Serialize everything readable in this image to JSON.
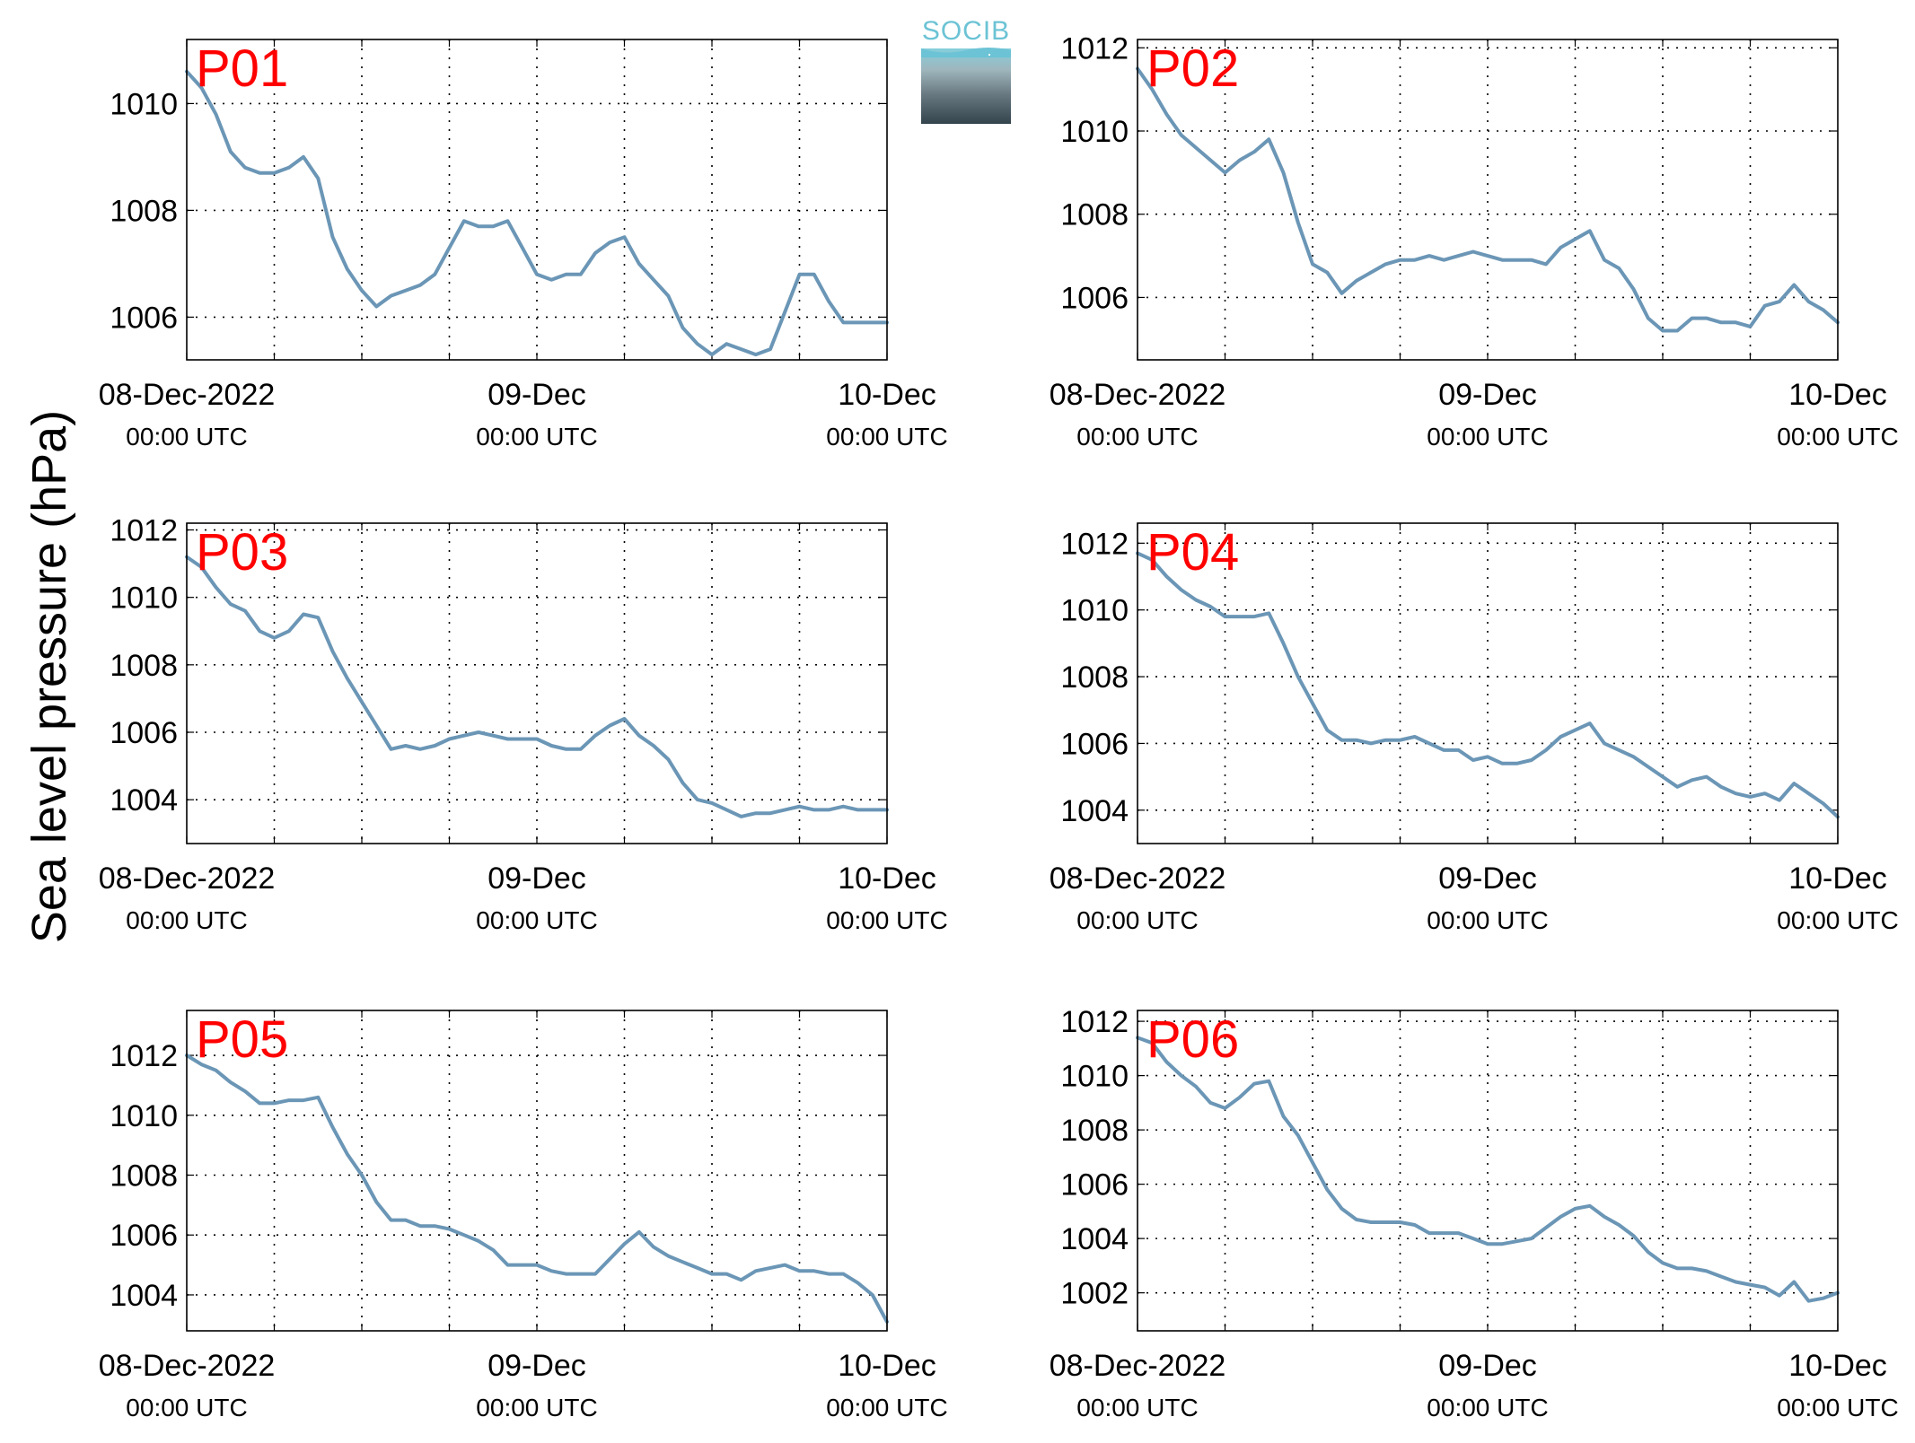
{
  "figure": {
    "ylabel": "Sea level pressure (hPa)",
    "logo_text": "SOCIB",
    "line_color": "#6b96b6",
    "label_color": "#ff0000"
  },
  "chart_data": [
    {
      "type": "line",
      "title": "P01",
      "ylim": [
        1005.2,
        1011.2
      ],
      "yticks": [
        1006,
        1008,
        1010
      ],
      "x_range_hours": [
        0,
        48
      ],
      "grid": true,
      "xtick_labels": [
        {
          "top": "08-Dec-2022",
          "bottom": "00:00 UTC"
        },
        {
          "top": "09-Dec",
          "bottom": "00:00 UTC"
        },
        {
          "top": "10-Dec",
          "bottom": "00:00 UTC"
        }
      ],
      "series": [
        {
          "x": [
            0,
            1,
            2,
            3,
            4,
            5,
            6,
            7,
            8,
            9,
            10,
            11,
            12,
            13,
            14,
            15,
            16,
            17,
            18,
            19,
            20,
            21,
            22,
            23,
            24,
            25,
            26,
            27,
            28,
            29,
            30,
            31,
            32,
            33,
            34,
            35,
            36,
            37,
            38,
            39,
            40,
            41,
            42,
            43,
            44,
            45,
            46,
            47,
            48
          ],
          "values": [
            1010.6,
            1010.3,
            1009.8,
            1009.1,
            1008.8,
            1008.7,
            1008.7,
            1008.8,
            1009.0,
            1008.6,
            1007.5,
            1006.9,
            1006.5,
            1006.2,
            1006.4,
            1006.5,
            1006.6,
            1006.8,
            1007.3,
            1007.8,
            1007.7,
            1007.7,
            1007.8,
            1007.3,
            1006.8,
            1006.7,
            1006.8,
            1006.8,
            1007.2,
            1007.4,
            1007.5,
            1007.0,
            1006.7,
            1006.4,
            1005.8,
            1005.5,
            1005.3,
            1005.5,
            1005.4,
            1005.3,
            1005.4,
            1006.1,
            1006.8,
            1006.8,
            1006.3,
            1005.9,
            1005.9,
            1005.9,
            1005.9
          ]
        }
      ]
    },
    {
      "type": "line",
      "title": "P02",
      "ylim": [
        1004.5,
        1012.2
      ],
      "yticks": [
        1006,
        1008,
        1010,
        1012
      ],
      "x_range_hours": [
        0,
        48
      ],
      "grid": true,
      "xtick_labels": [
        {
          "top": "08-Dec-2022",
          "bottom": "00:00 UTC"
        },
        {
          "top": "09-Dec",
          "bottom": "00:00 UTC"
        },
        {
          "top": "10-Dec",
          "bottom": "00:00 UTC"
        }
      ],
      "series": [
        {
          "x": [
            0,
            1,
            2,
            3,
            4,
            5,
            6,
            7,
            8,
            9,
            10,
            11,
            12,
            13,
            14,
            15,
            16,
            17,
            18,
            19,
            20,
            21,
            22,
            23,
            24,
            25,
            26,
            27,
            28,
            29,
            30,
            31,
            32,
            33,
            34,
            35,
            36,
            37,
            38,
            39,
            40,
            41,
            42,
            43,
            44,
            45,
            46,
            47,
            48
          ],
          "values": [
            1011.5,
            1011.0,
            1010.4,
            1009.9,
            1009.6,
            1009.3,
            1009.0,
            1009.3,
            1009.5,
            1009.8,
            1009.0,
            1007.8,
            1006.8,
            1006.6,
            1006.1,
            1006.4,
            1006.6,
            1006.8,
            1006.9,
            1006.9,
            1007.0,
            1006.9,
            1007.0,
            1007.1,
            1007.0,
            1006.9,
            1006.9,
            1006.9,
            1006.8,
            1007.2,
            1007.4,
            1007.6,
            1006.9,
            1006.7,
            1006.2,
            1005.5,
            1005.2,
            1005.2,
            1005.5,
            1005.5,
            1005.4,
            1005.4,
            1005.3,
            1005.8,
            1005.9,
            1006.3,
            1005.9,
            1005.7,
            1005.4
          ]
        }
      ]
    },
    {
      "type": "line",
      "title": "P03",
      "ylim": [
        1002.7,
        1012.2
      ],
      "yticks": [
        1004,
        1006,
        1008,
        1010,
        1012
      ],
      "x_range_hours": [
        0,
        48
      ],
      "grid": true,
      "xtick_labels": [
        {
          "top": "08-Dec-2022",
          "bottom": "00:00 UTC"
        },
        {
          "top": "09-Dec",
          "bottom": "00:00 UTC"
        },
        {
          "top": "10-Dec",
          "bottom": "00:00 UTC"
        }
      ],
      "series": [
        {
          "x": [
            0,
            1,
            2,
            3,
            4,
            5,
            6,
            7,
            8,
            9,
            10,
            11,
            12,
            13,
            14,
            15,
            16,
            17,
            18,
            19,
            20,
            21,
            22,
            23,
            24,
            25,
            26,
            27,
            28,
            29,
            30,
            31,
            32,
            33,
            34,
            35,
            36,
            37,
            38,
            39,
            40,
            41,
            42,
            43,
            44,
            45,
            46,
            47,
            48
          ],
          "values": [
            1011.2,
            1010.9,
            1010.3,
            1009.8,
            1009.6,
            1009.0,
            1008.8,
            1009.0,
            1009.5,
            1009.4,
            1008.4,
            1007.6,
            1006.9,
            1006.2,
            1005.5,
            1005.6,
            1005.5,
            1005.6,
            1005.8,
            1005.9,
            1006.0,
            1005.9,
            1005.8,
            1005.8,
            1005.8,
            1005.6,
            1005.5,
            1005.5,
            1005.9,
            1006.2,
            1006.4,
            1005.9,
            1005.6,
            1005.2,
            1004.5,
            1004.0,
            1003.9,
            1003.7,
            1003.5,
            1003.6,
            1003.6,
            1003.7,
            1003.8,
            1003.7,
            1003.7,
            1003.8,
            1003.7,
            1003.7,
            1003.7
          ]
        }
      ]
    },
    {
      "type": "line",
      "title": "P04",
      "ylim": [
        1003.0,
        1012.6
      ],
      "yticks": [
        1004,
        1006,
        1008,
        1010,
        1012
      ],
      "x_range_hours": [
        0,
        48
      ],
      "grid": true,
      "xtick_labels": [
        {
          "top": "08-Dec-2022",
          "bottom": "00:00 UTC"
        },
        {
          "top": "09-Dec",
          "bottom": "00:00 UTC"
        },
        {
          "top": "10-Dec",
          "bottom": "00:00 UTC"
        }
      ],
      "series": [
        {
          "x": [
            0,
            1,
            2,
            3,
            4,
            5,
            6,
            7,
            8,
            9,
            10,
            11,
            12,
            13,
            14,
            15,
            16,
            17,
            18,
            19,
            20,
            21,
            22,
            23,
            24,
            25,
            26,
            27,
            28,
            29,
            30,
            31,
            32,
            33,
            34,
            35,
            36,
            37,
            38,
            39,
            40,
            41,
            42,
            43,
            44,
            45,
            46,
            47,
            48
          ],
          "values": [
            1011.7,
            1011.5,
            1011.0,
            1010.6,
            1010.3,
            1010.1,
            1009.8,
            1009.8,
            1009.8,
            1009.9,
            1009.0,
            1008.0,
            1007.2,
            1006.4,
            1006.1,
            1006.1,
            1006.0,
            1006.1,
            1006.1,
            1006.2,
            1006.0,
            1005.8,
            1005.8,
            1005.5,
            1005.6,
            1005.4,
            1005.4,
            1005.5,
            1005.8,
            1006.2,
            1006.4,
            1006.6,
            1006.0,
            1005.8,
            1005.6,
            1005.3,
            1005.0,
            1004.7,
            1004.9,
            1005.0,
            1004.7,
            1004.5,
            1004.4,
            1004.5,
            1004.3,
            1004.8,
            1004.5,
            1004.2,
            1003.8
          ]
        }
      ]
    },
    {
      "type": "line",
      "title": "P05",
      "ylim": [
        1002.8,
        1013.5
      ],
      "yticks": [
        1004,
        1006,
        1008,
        1010,
        1012
      ],
      "x_range_hours": [
        0,
        48
      ],
      "grid": true,
      "xtick_labels": [
        {
          "top": "08-Dec-2022",
          "bottom": "00:00 UTC"
        },
        {
          "top": "09-Dec",
          "bottom": "00:00 UTC"
        },
        {
          "top": "10-Dec",
          "bottom": "00:00 UTC"
        }
      ],
      "series": [
        {
          "x": [
            0,
            1,
            2,
            3,
            4,
            5,
            6,
            7,
            8,
            9,
            10,
            11,
            12,
            13,
            14,
            15,
            16,
            17,
            18,
            19,
            20,
            21,
            22,
            23,
            24,
            25,
            26,
            27,
            28,
            29,
            30,
            31,
            32,
            33,
            34,
            35,
            36,
            37,
            38,
            39,
            40,
            41,
            42,
            43,
            44,
            45,
            46,
            47,
            48
          ],
          "values": [
            1012.0,
            1011.7,
            1011.5,
            1011.1,
            1010.8,
            1010.4,
            1010.4,
            1010.5,
            1010.5,
            1010.6,
            1009.6,
            1008.7,
            1008.0,
            1007.1,
            1006.5,
            1006.5,
            1006.3,
            1006.3,
            1006.2,
            1006.0,
            1005.8,
            1005.5,
            1005.0,
            1005.0,
            1005.0,
            1004.8,
            1004.7,
            1004.7,
            1004.7,
            1005.2,
            1005.7,
            1006.1,
            1005.6,
            1005.3,
            1005.1,
            1004.9,
            1004.7,
            1004.7,
            1004.5,
            1004.8,
            1004.9,
            1005.0,
            1004.8,
            1004.8,
            1004.7,
            1004.7,
            1004.4,
            1004.0,
            1003.1
          ]
        }
      ]
    },
    {
      "type": "line",
      "title": "P06",
      "ylim": [
        1000.6,
        1012.4
      ],
      "yticks": [
        1002,
        1004,
        1006,
        1008,
        1010,
        1012
      ],
      "x_range_hours": [
        0,
        48
      ],
      "grid": true,
      "xtick_labels": [
        {
          "top": "08-Dec-2022",
          "bottom": "00:00 UTC"
        },
        {
          "top": "09-Dec",
          "bottom": "00:00 UTC"
        },
        {
          "top": "10-Dec",
          "bottom": "00:00 UTC"
        }
      ],
      "series": [
        {
          "x": [
            0,
            1,
            2,
            3,
            4,
            5,
            6,
            7,
            8,
            9,
            10,
            11,
            12,
            13,
            14,
            15,
            16,
            17,
            18,
            19,
            20,
            21,
            22,
            23,
            24,
            25,
            26,
            27,
            28,
            29,
            30,
            31,
            32,
            33,
            34,
            35,
            36,
            37,
            38,
            39,
            40,
            41,
            42,
            43,
            44,
            45,
            46,
            47,
            48
          ],
          "values": [
            1011.4,
            1011.2,
            1010.5,
            1010.0,
            1009.6,
            1009.0,
            1008.8,
            1009.2,
            1009.7,
            1009.8,
            1008.5,
            1007.8,
            1006.8,
            1005.8,
            1005.1,
            1004.7,
            1004.6,
            1004.6,
            1004.6,
            1004.5,
            1004.2,
            1004.2,
            1004.2,
            1004.0,
            1003.8,
            1003.8,
            1003.9,
            1004.0,
            1004.4,
            1004.8,
            1005.1,
            1005.2,
            1004.8,
            1004.5,
            1004.1,
            1003.5,
            1003.1,
            1002.9,
            1002.9,
            1002.8,
            1002.6,
            1002.4,
            1002.3,
            1002.2,
            1001.9,
            1002.4,
            1001.7,
            1001.8,
            1002.0
          ]
        }
      ]
    }
  ]
}
